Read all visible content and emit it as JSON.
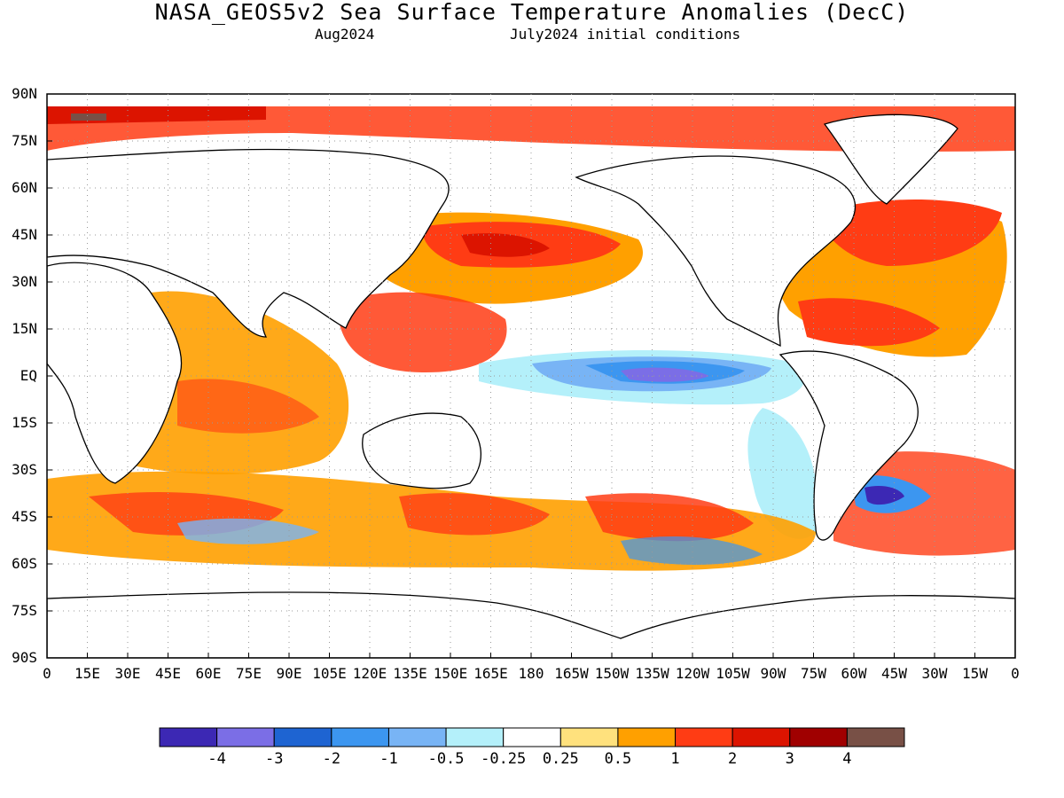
{
  "title": "NASA_GEOS5v2 Sea Surface Temperature Anomalies (DecC)",
  "subtitle_left": "Aug2024",
  "subtitle_right": "July2024 initial conditions",
  "lat_labels": [
    "90N",
    "75N",
    "60N",
    "45N",
    "30N",
    "15N",
    "EQ",
    "15S",
    "30S",
    "45S",
    "60S",
    "75S",
    "90S"
  ],
  "lon_labels": [
    "0",
    "15E",
    "30E",
    "45E",
    "60E",
    "75E",
    "90E",
    "105E",
    "120E",
    "135E",
    "150E",
    "165E",
    "180",
    "165W",
    "150W",
    "135W",
    "120W",
    "105W",
    "90W",
    "75W",
    "60W",
    "45W",
    "30W",
    "15W",
    "0"
  ],
  "colorbar": {
    "colors": [
      "#3c28b4",
      "#7b6ee6",
      "#1e64d2",
      "#3c96f0",
      "#78b4f5",
      "#b4f0fa",
      "#ffffff",
      "#ffe17d",
      "#ffa000",
      "#ff3c14",
      "#dc1400",
      "#a00000",
      "#785046"
    ],
    "labels": [
      "-4",
      "-3",
      "-2",
      "-1",
      "-0.5",
      "-0.25",
      "0.25",
      "0.5",
      "1",
      "2",
      "3",
      "4"
    ]
  }
}
